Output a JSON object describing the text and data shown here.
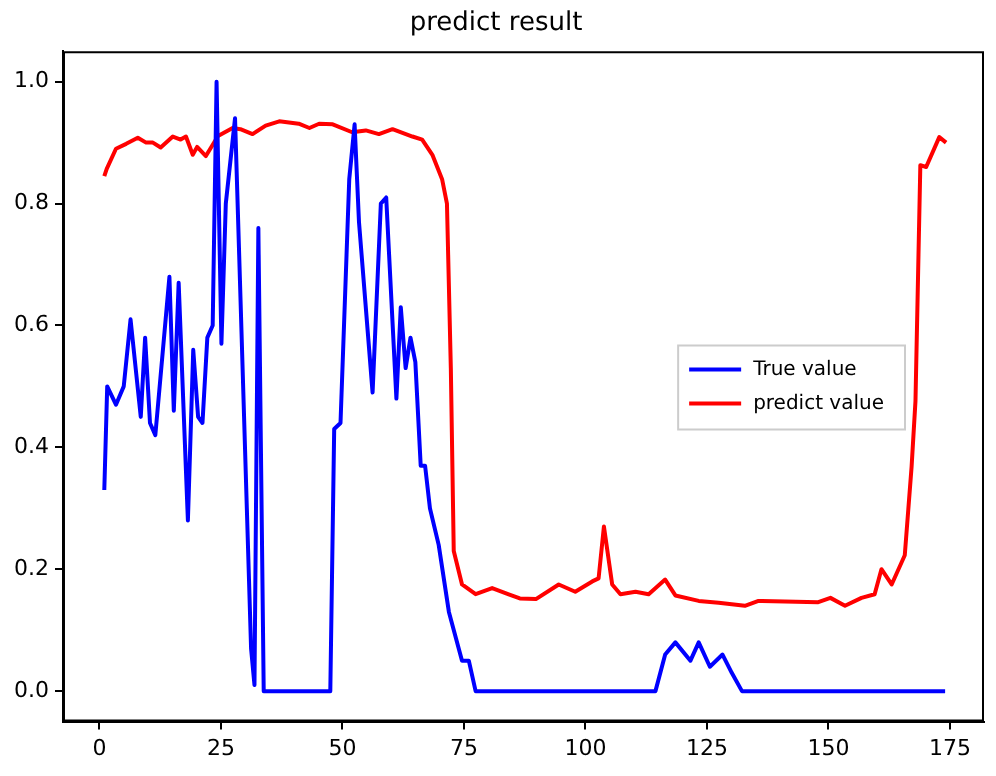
{
  "chart_data": {
    "type": "line",
    "title": "predict result",
    "xlim": [
      -7.5,
      182
    ],
    "ylim": [
      -0.05,
      1.05
    ],
    "xticks": [
      0,
      25,
      50,
      75,
      100,
      125,
      150,
      175
    ],
    "yticks": [
      {
        "value": 0,
        "label": "0.0"
      },
      {
        "value": 0.2,
        "label": "0.2"
      },
      {
        "value": 0.4,
        "label": "0.4"
      },
      {
        "value": 0.6,
        "label": "0.6"
      },
      {
        "value": 0.8,
        "label": "0.8"
      },
      {
        "value": 1,
        "label": "1.0"
      }
    ],
    "legend": "center right",
    "grid": false,
    "series": [
      {
        "name": "True value",
        "color": "#0000ff",
        "x": [
          1,
          1.6,
          3.4,
          5,
          6.4,
          8.5,
          9.4,
          10.4,
          11.5,
          14.4,
          15.3,
          16.3,
          18.2,
          19.3,
          20.3,
          21.2,
          22.2,
          23.3,
          24.1,
          25.1,
          26,
          27.9,
          31.2,
          31.9,
          32.7,
          33.8,
          47.5,
          48.3,
          49.6,
          51.4,
          52.5,
          53.4,
          56.2,
          57.9,
          59,
          61.1,
          62,
          63,
          64,
          65,
          66.1,
          67,
          68,
          69.8,
          71.9,
          74.6,
          76,
          77.4,
          114.4,
          116.4,
          118.5,
          121.6,
          123.3,
          125.6,
          128.2,
          130.1,
          132.2,
          174
        ],
        "values": [
          0.33,
          0.5,
          0.47,
          0.5,
          0.61,
          0.45,
          0.58,
          0.44,
          0.42,
          0.68,
          0.46,
          0.67,
          0.28,
          0.56,
          0.45,
          0.44,
          0.58,
          0.6,
          1.0,
          0.57,
          0.8,
          0.94,
          0.07,
          0.01,
          0.76,
          0,
          0,
          0.43,
          0.44,
          0.84,
          0.93,
          0.77,
          0.49,
          0.8,
          0.81,
          0.48,
          0.63,
          0.53,
          0.58,
          0.54,
          0.37,
          0.37,
          0.3,
          0.24,
          0.13,
          0.05,
          0.05,
          0,
          0,
          0.06,
          0.08,
          0.05,
          0.08,
          0.04,
          0.06,
          0.03,
          0,
          0
        ]
      },
      {
        "name": "predict value",
        "color": "#ff0000",
        "x": [
          1,
          1.5,
          3.4,
          5.5,
          7.9,
          9.6,
          11,
          12.6,
          15.1,
          16.7,
          17.8,
          19.2,
          20.1,
          21.9,
          24.4,
          27.4,
          29,
          31.5,
          34.2,
          37,
          41,
          43.2,
          45.2,
          48,
          52,
          54.8,
          57.5,
          60.3,
          64.4,
          66.4,
          68.5,
          70.5,
          71.5,
          72.3,
          72.9,
          74.6,
          77.4,
          80.8,
          83.8,
          86.5,
          89.8,
          94.5,
          97.9,
          101.4,
          102.7,
          103.8,
          105.5,
          107.2,
          110.3,
          113,
          116.4,
          118.5,
          123.3,
          127.4,
          132.8,
          135.6,
          141,
          147.9,
          150.4,
          153.4,
          156.8,
          159.5,
          160.9,
          163,
          165.7,
          167.1,
          167.9,
          168.9,
          170.1,
          172.8,
          174.2
        ],
        "values": [
          0.845,
          0.857,
          0.89,
          0.898,
          0.908,
          0.9,
          0.9,
          0.892,
          0.91,
          0.905,
          0.91,
          0.88,
          0.893,
          0.878,
          0.911,
          0.924,
          0.922,
          0.914,
          0.928,
          0.935,
          0.931,
          0.924,
          0.931,
          0.93,
          0.917,
          0.92,
          0.914,
          0.922,
          0.91,
          0.905,
          0.88,
          0.84,
          0.8,
          0.53,
          0.23,
          0.175,
          0.159,
          0.169,
          0.16,
          0.152,
          0.151,
          0.175,
          0.163,
          0.18,
          0.185,
          0.27,
          0.175,
          0.159,
          0.163,
          0.159,
          0.183,
          0.157,
          0.148,
          0.145,
          0.14,
          0.148,
          0.147,
          0.146,
          0.153,
          0.14,
          0.153,
          0.159,
          0.2,
          0.175,
          0.223,
          0.368,
          0.476,
          0.863,
          0.86,
          0.909,
          0.9
        ]
      }
    ]
  }
}
